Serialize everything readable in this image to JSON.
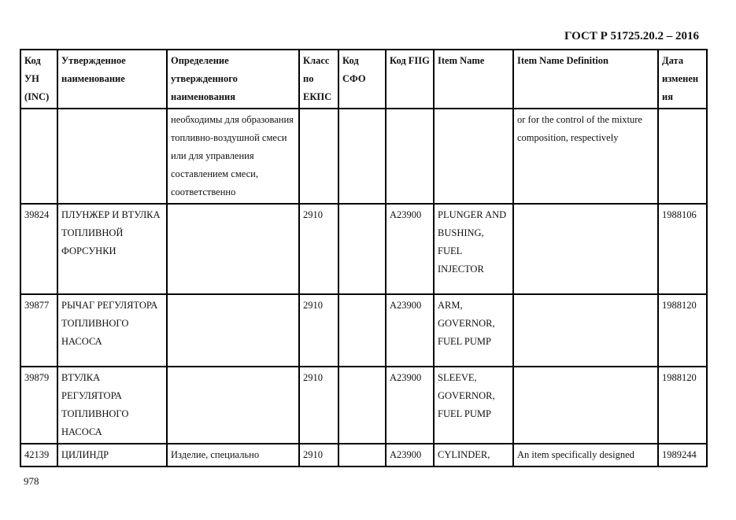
{
  "header": {
    "doc_title": "ГОСТ Р 51725.20.2 – 2016"
  },
  "table": {
    "columns": [
      "Код УН (INC)",
      "Утвержденное наименование",
      "Определение утвержденного наименования",
      "Класс по ЕКПС",
      "Код СФО",
      "Код FIIG",
      "Item Name",
      "Item Name Definition",
      "Дата изменения"
    ],
    "rows": [
      [
        "",
        "",
        "необходимы для образования топливно-воздушной смеси или для управления составлением смеси, соответственно",
        "",
        "",
        "",
        "",
        "or for the control of the mixture composition, respectively",
        ""
      ],
      [
        "39824",
        "ПЛУНЖЕР И ВТУЛКА ТОПЛИВНОЙ ФОРСУНКИ",
        "",
        "2910",
        "",
        "A23900",
        "PLUNGER AND BUSHING, FUEL INJECTOR",
        "",
        "1988106"
      ],
      [
        "39877",
        "РЫЧАГ РЕГУЛЯТОРА ТОПЛИВНОГО НАСОСА",
        "",
        "2910",
        "",
        "A23900",
        "ARM, GOVERNOR, FUEL PUMP",
        "",
        "1988120"
      ],
      [
        "39879",
        "ВТУЛКА РЕГУЛЯТОРА ТОПЛИВНОГО НАСОСА",
        "",
        "2910",
        "",
        "A23900",
        "SLEEVE, GOVERNOR, FUEL PUMP",
        "",
        "1988120"
      ],
      [
        "42139",
        "ЦИЛИНДР",
        "Изделие, специально",
        "2910",
        "",
        "A23900",
        "CYLINDER,",
        "An item specifically designed",
        "1989244"
      ]
    ]
  },
  "footer": {
    "page_number": "978"
  }
}
